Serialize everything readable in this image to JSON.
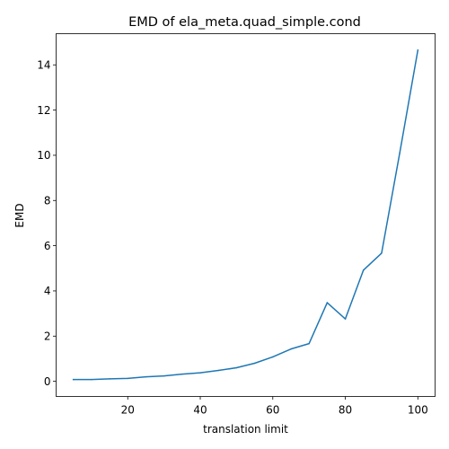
{
  "chart_data": {
    "type": "line",
    "title": "EMD of ela_meta.quad_simple.cond",
    "xlabel": "translation limit",
    "ylabel": "EMD",
    "xlim": [
      0.25,
      104.75
    ],
    "ylim": [
      -0.67,
      15.38
    ],
    "xticks": [
      20,
      40,
      60,
      80,
      100
    ],
    "yticks": [
      0,
      2,
      4,
      6,
      8,
      10,
      12,
      14
    ],
    "grid": false,
    "series": [
      {
        "name": "EMD",
        "color": "#1f77b4",
        "x": [
          5,
          10,
          15,
          20,
          25,
          30,
          35,
          40,
          45,
          50,
          55,
          60,
          65,
          70,
          75,
          80,
          85,
          90,
          95,
          100
        ],
        "y": [
          0.08,
          0.08,
          0.11,
          0.13,
          0.2,
          0.24,
          0.32,
          0.38,
          0.48,
          0.6,
          0.8,
          1.08,
          1.43,
          1.67,
          3.48,
          2.76,
          4.92,
          5.67,
          10.1,
          14.65
        ]
      }
    ]
  }
}
